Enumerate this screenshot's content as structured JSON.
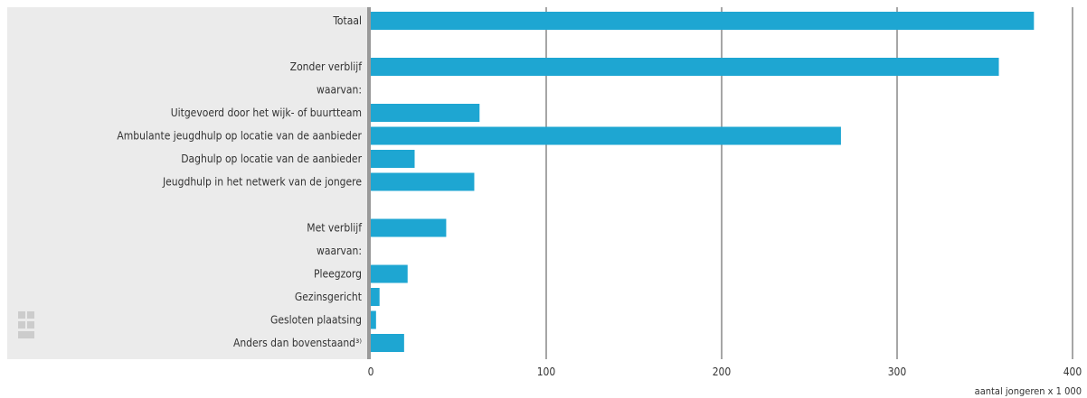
{
  "chart_data": {
    "type": "bar",
    "orientation": "horizontal",
    "categories": [
      "Totaal",
      "",
      "Zonder verblijf",
      "waarvan:",
      "Uitgevoerd door het wijk- of buurtteam",
      "Ambulante jeugdhulp op locatie van de aanbieder",
      "Daghulp op locatie van de aanbieder",
      "Jeugdhulp in het netwerk van de jongere",
      "",
      "Met verblijf",
      "waarvan:",
      "Pleegzorg",
      "Gezinsgericht",
      "Gesloten plaatsing",
      "Anders dan bovenstaand³⁾"
    ],
    "values": [
      378,
      null,
      358,
      null,
      62,
      268,
      25,
      59,
      null,
      43,
      null,
      21,
      5,
      3,
      19
    ],
    "xlim": [
      0,
      400
    ],
    "xticks": [
      "0",
      "100",
      "200",
      "300",
      "400"
    ],
    "xlabel": "aantal jongeren x 1 000",
    "title": "",
    "grid": true,
    "bar_color": "#1ea6d2"
  },
  "colors": {
    "label_panel": "#ebebeb",
    "axis_line": "#999999",
    "grid": "#4d4d4d"
  },
  "logo": {
    "icon": "cbs-logo-icon"
  }
}
